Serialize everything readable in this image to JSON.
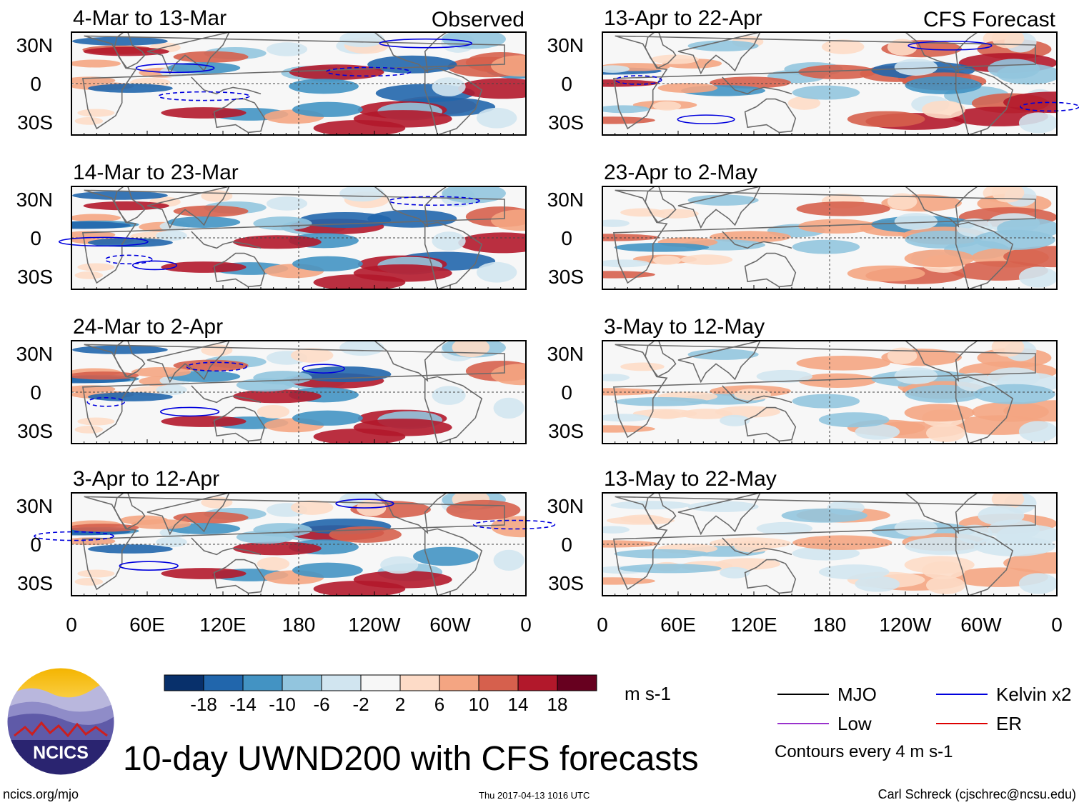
{
  "chart_data": {
    "type": "heatmap",
    "title": "10-day UWND200 with CFS forecasts",
    "variable": "UWND200",
    "units": "m s-1",
    "columns": [
      {
        "label": "Observed",
        "panels": [
          "4-Mar to 13-Mar",
          "14-Mar to 23-Mar",
          "24-Mar to 2-Apr",
          "3-Apr to 12-Apr"
        ]
      },
      {
        "label": "CFS Forecast",
        "panels": [
          "13-Apr to 22-Apr",
          "23-Apr to 2-May",
          "3-May to 12-May",
          "13-May to 22-May"
        ]
      }
    ],
    "x_ticks": [
      "0",
      "60E",
      "120E",
      "180",
      "120W",
      "60W",
      "0"
    ],
    "y_ticks": [
      "30N",
      "0",
      "30S"
    ],
    "lat_range": [
      -40,
      40
    ],
    "lon_range": [
      0,
      360
    ],
    "colorbar": {
      "colors": [
        "#08306b",
        "#2166ac",
        "#4393c3",
        "#92c5de",
        "#d1e5f0",
        "#f7f7f7",
        "#fddbc7",
        "#f4a582",
        "#d6604d",
        "#b2182b",
        "#67001f"
      ],
      "levels": [
        "-18",
        "-14",
        "-10",
        "-6",
        "-2",
        "2",
        "6",
        "10",
        "14",
        "18"
      ]
    },
    "legend": [
      {
        "label": "MJO",
        "color": "#000000"
      },
      {
        "label": "Kelvin x2",
        "color": "#0000dd"
      },
      {
        "label": "Low",
        "color": "#9932cc"
      },
      {
        "label": "ER",
        "color": "#dd0000"
      }
    ],
    "contour_note": "Contours every 4 m s-1"
  },
  "footer": {
    "site": "ncics.org/mjo",
    "timestamp": "Thu 2017-04-13 1016 UTC",
    "author": "Carl Schreck (cjschrec@ncsu.edu)",
    "logo_text": "NCICS"
  }
}
